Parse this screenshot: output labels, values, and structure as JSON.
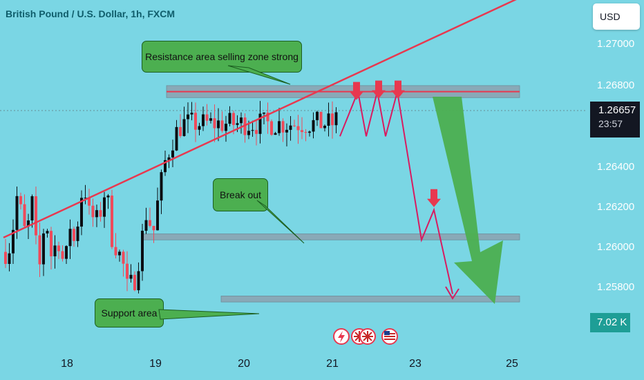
{
  "header": {
    "title": "British Pound / U.S. Dollar, 1h, FXCM",
    "currency_button": "USD"
  },
  "price_tag": {
    "price": "1.26657",
    "countdown": "23:57"
  },
  "volume_tag": "7.02 K",
  "colors": {
    "background": "#7ad6e4",
    "bull": "#0b0d12",
    "bear": "#ef4a5a",
    "annotation_red": "#e8384f",
    "arrow_magenta": "#d81b60",
    "big_arrow_green": "#4caf50",
    "zone_grey": "#8f9aa8"
  },
  "callouts": {
    "resistance": "Resistance area selling zone strong",
    "breakout": "Break out",
    "support": "Support area"
  },
  "event_icons": [
    "lightning-icon",
    "uk-flag-icon",
    "uk-flag-icon",
    "us-flag-icon"
  ],
  "chart_data": {
    "type": "candlestick",
    "x_tick_labels": [
      "18",
      "19",
      "20",
      "21",
      "23",
      "25"
    ],
    "y_tick_labels": [
      "1.27000",
      "1.26800",
      "1.26400",
      "1.26200",
      "1.26000",
      "1.25800"
    ],
    "ylim": [
      1.2566,
      1.2722
    ],
    "last_price": 1.26657,
    "grid": false,
    "zones": [
      {
        "name": "resistance",
        "from": 1.2673,
        "to": 1.2679
      },
      {
        "name": "breakout",
        "from": 1.2602,
        "to": 1.2605
      },
      {
        "name": "support",
        "from": 1.2571,
        "to": 1.2574
      }
    ],
    "trendline": {
      "from_bar": 0,
      "from_price": 1.2609,
      "to_bar": 150,
      "to_price": 1.2727
    },
    "resistance_line": 1.2676,
    "projection_path": [
      [
        2,
        1.26537
      ],
      [
        8,
        1.2676
      ],
      [
        14,
        1.26537
      ],
      [
        20,
        1.2676
      ],
      [
        26,
        1.26537
      ],
      [
        33,
        1.2676
      ],
      [
        43,
        1.2602
      ],
      [
        53,
        1.2617
      ],
      [
        62,
        1.2575
      ]
    ],
    "down_arrows_at": [
      20,
      33,
      43,
      62
    ],
    "big_arrow": {
      "from_bar": 63,
      "from_price": 1.2674,
      "to_bar": 113,
      "to_price": 1.2571
    },
    "seed": 7
  }
}
